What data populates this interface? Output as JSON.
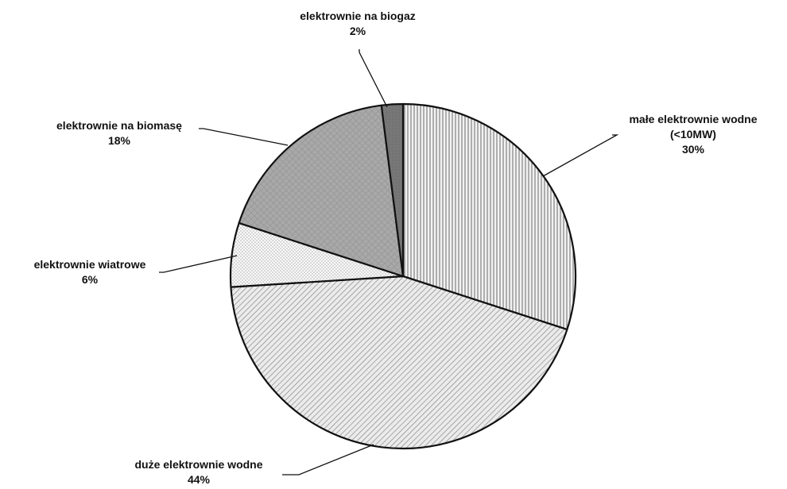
{
  "chart_data": {
    "type": "pie",
    "title": "",
    "slices": [
      {
        "label_lines": [
          "małe elektrownie wodne",
          "(<10MW)"
        ],
        "value": 30,
        "value_text": "30%",
        "pattern": "vertical-lines"
      },
      {
        "label_lines": [
          "duże elektrownie wodne"
        ],
        "value": 44,
        "value_text": "44%",
        "pattern": "diagonal-lines"
      },
      {
        "label_lines": [
          "elektrownie wiatrowe"
        ],
        "value": 6,
        "value_text": "6%",
        "pattern": "dots"
      },
      {
        "label_lines": [
          "elektrownie na biomasę"
        ],
        "value": 18,
        "value_text": "18%",
        "pattern": "crosshatch-grey"
      },
      {
        "label_lines": [
          "elektrownie na biogaz"
        ],
        "value": 2,
        "value_text": "2%",
        "pattern": "dark-grey"
      }
    ],
    "start_angle": "12 o'clock",
    "direction": "clockwise",
    "legend": "none",
    "labels": "outside with leader lines"
  }
}
